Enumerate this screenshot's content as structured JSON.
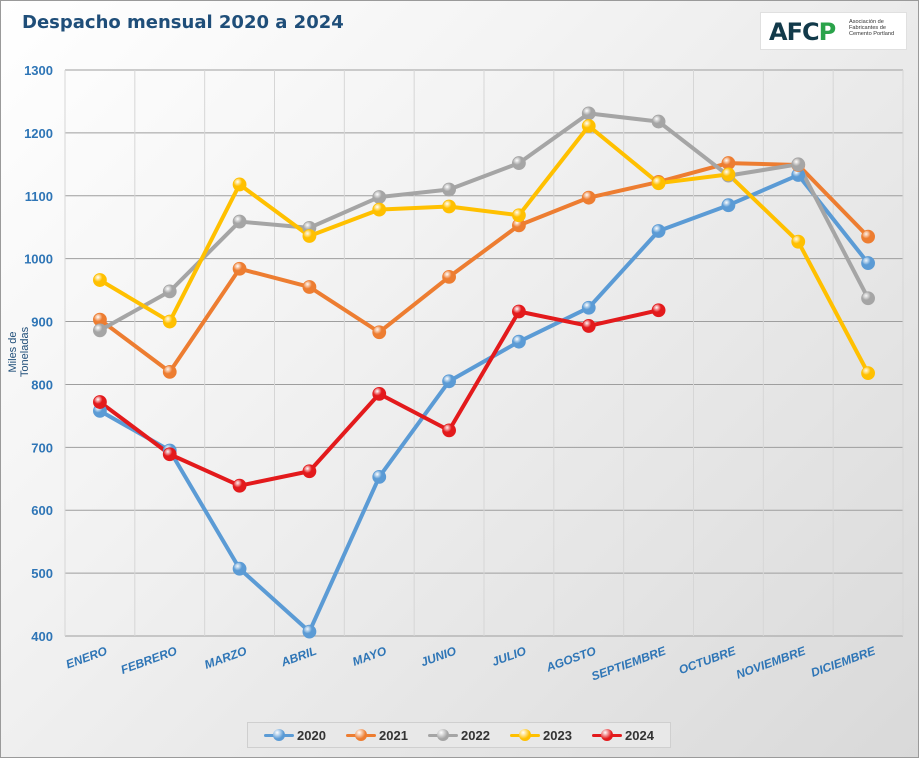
{
  "logo": {
    "mark": "AFCP",
    "text": "Asociación de Fabricantes de Cemento Portland"
  },
  "chart_data": {
    "type": "line",
    "title": "Despacho mensual 2020 a 2024",
    "ylabel": "Miles de Toneladas",
    "xlabel": "",
    "ylim": [
      400,
      1300
    ],
    "yticks": [
      400,
      500,
      600,
      700,
      800,
      900,
      1000,
      1100,
      1200,
      1300
    ],
    "grid": true,
    "legend_position": "bottom",
    "categories": [
      "ENERO",
      "FEBRERO",
      "MARZO",
      "ABRIL",
      "MAYO",
      "JUNIO",
      "JULIO",
      "AGOSTO",
      "SEPTIEMBRE",
      "OCTUBRE",
      "NOVIEMBRE",
      "DICIEMBRE"
    ],
    "series": [
      {
        "name": "2020",
        "color": "#5b9bd5",
        "values": [
          758,
          695,
          507,
          407,
          653,
          805,
          868,
          922,
          1044,
          1085,
          1133,
          993
        ]
      },
      {
        "name": "2021",
        "color": "#ed7d31",
        "values": [
          903,
          820,
          984,
          955,
          883,
          971,
          1053,
          1097,
          1122,
          1152,
          1149,
          1035
        ]
      },
      {
        "name": "2022",
        "color": "#a5a5a5",
        "values": [
          886,
          948,
          1059,
          1049,
          1098,
          1110,
          1152,
          1231,
          1218,
          1132,
          1150,
          937
        ]
      },
      {
        "name": "2023",
        "color": "#ffc000",
        "values": [
          966,
          900,
          1118,
          1036,
          1078,
          1083,
          1069,
          1211,
          1120,
          1134,
          1027,
          818
        ]
      },
      {
        "name": "2024",
        "color": "#e31a1c",
        "values": [
          772,
          689,
          639,
          662,
          785,
          727,
          916,
          893,
          918,
          null,
          null,
          null
        ]
      }
    ]
  }
}
